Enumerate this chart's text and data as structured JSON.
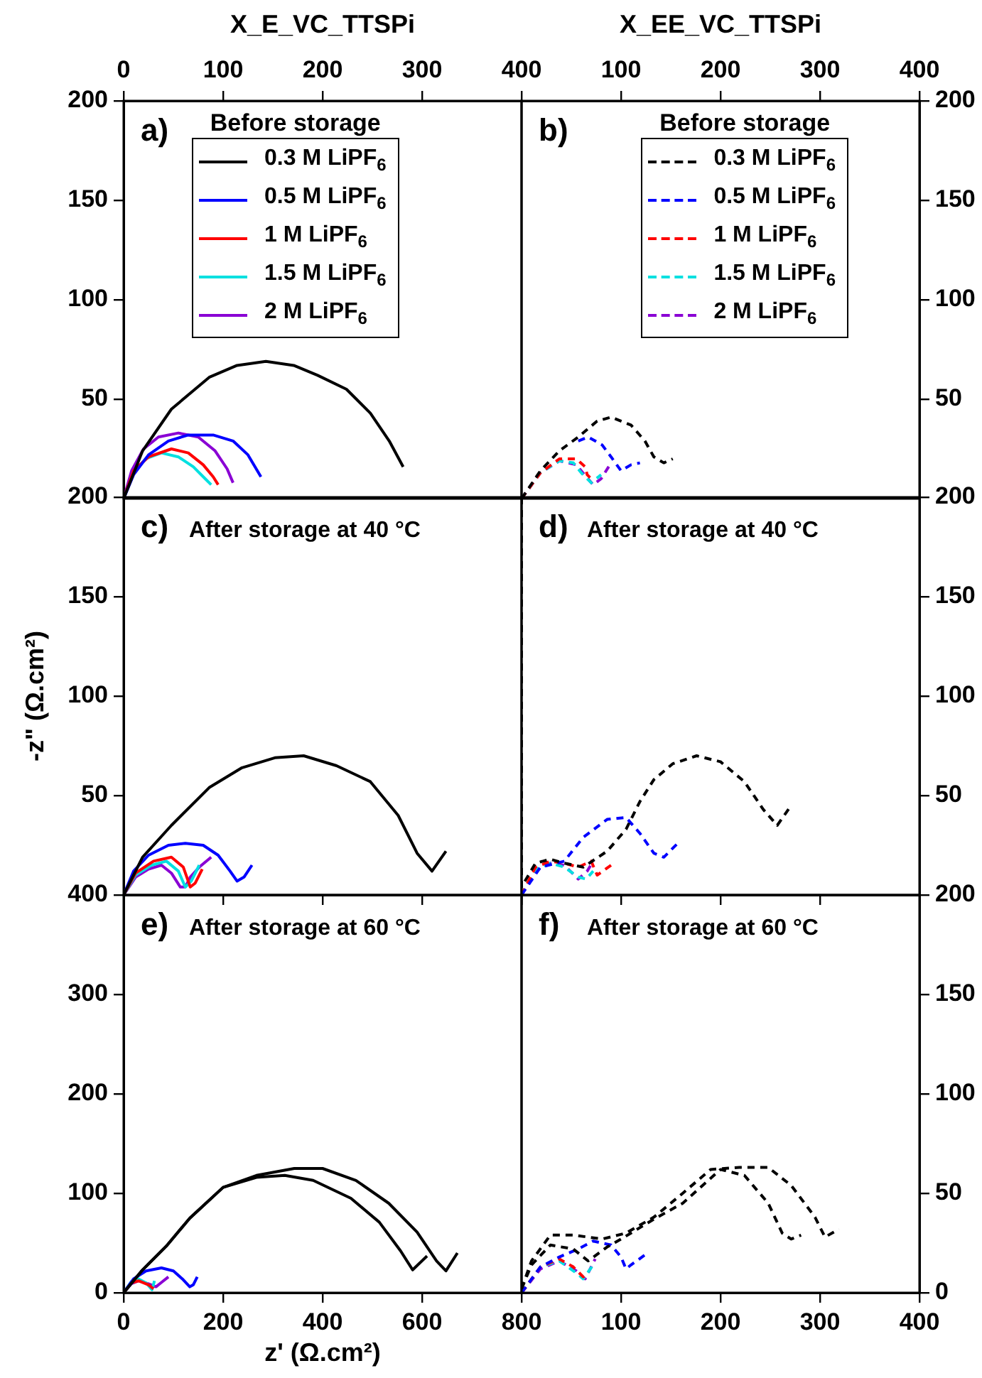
{
  "chart_data": [
    {
      "type": "line",
      "title": "a)",
      "legend_title": "Before storage",
      "legend": "top left",
      "xlabel": "X_E_VC_TTSPi",
      "line_style": "solid",
      "marker": "none",
      "xlim": [
        0,
        400
      ],
      "ylim": [
        0,
        200
      ],
      "xticks": [
        0,
        100,
        200,
        300,
        400
      ],
      "yticks": [
        50,
        100,
        150,
        200
      ],
      "series": [
        {
          "name": "0.3 M LiPF$_{6}$",
          "color": "#000000",
          "x": [
            0,
            19,
            48,
            86,
            114,
            143,
            171,
            195,
            224,
            248,
            267,
            281
          ],
          "values": [
            0,
            24,
            45,
            61,
            67,
            69,
            67,
            62,
            55,
            43,
            29,
            16
          ]
        },
        {
          "name": "0.5 M LiPF$_{6}$",
          "color": "#0000ff",
          "x": [
            0,
            10,
            25,
            45,
            65,
            90,
            110,
            125,
            138
          ],
          "values": [
            0,
            12,
            22,
            29,
            32,
            32,
            29,
            22,
            11
          ]
        },
        {
          "name": "1 M LiPF$_{6}$",
          "color": "#ff0000",
          "x": [
            0,
            10,
            25,
            48,
            65,
            80,
            90,
            95
          ],
          "values": [
            0,
            14,
            21,
            25,
            23,
            17,
            11,
            7
          ]
        },
        {
          "name": "1.5 M LiPF$_{6}$",
          "color": "#00e0e0",
          "x": [
            0,
            10,
            22,
            38,
            55,
            70,
            82,
            88
          ],
          "values": [
            0,
            13,
            20,
            23,
            21,
            16,
            10,
            7
          ]
        },
        {
          "name": "2 M LiPF$_{6}$",
          "color": "#8a00d4",
          "x": [
            0,
            8,
            20,
            35,
            55,
            75,
            92,
            104,
            110
          ],
          "values": [
            0,
            14,
            25,
            31,
            33,
            31,
            24,
            15,
            8
          ]
        }
      ]
    },
    {
      "type": "line",
      "title": "b)",
      "legend_title": "Before storage",
      "legend": "top right",
      "xlabel": "X_EE_VC_TTSPi",
      "line_style": "dashed",
      "marker": "none",
      "xlim": [
        0,
        400
      ],
      "ylim": [
        0,
        200
      ],
      "xticks": [
        100,
        200,
        300,
        400
      ],
      "yticks": [
        50,
        100,
        150,
        200
      ],
      "series": [
        {
          "name": "0.3 M LiPF$_{6}$",
          "color": "#000000",
          "x": [
            0,
            19,
            38,
            57,
            76,
            90,
            110,
            124,
            133,
            143,
            152
          ],
          "values": [
            0,
            14,
            24,
            31,
            39,
            41,
            37,
            29,
            21,
            18,
            20
          ]
        },
        {
          "name": "0.5 M LiPF$_{6}$",
          "color": "#0000ff",
          "x": [
            57,
            67,
            81,
            90,
            100,
            110,
            119
          ],
          "values": [
            29,
            31,
            27,
            21,
            14,
            17,
            18
          ]
        },
        {
          "name": "1 M LiPF$_{6}$",
          "color": "#ff0000",
          "x": [
            0,
            19,
            38,
            55,
            64,
            66,
            70
          ],
          "values": [
            0,
            13,
            20,
            20,
            16,
            12,
            10
          ]
        },
        {
          "name": "1.5 M LiPF$_{6}$",
          "color": "#00e0e0",
          "x": [
            0,
            19,
            38,
            52,
            60,
            70,
            80
          ],
          "values": [
            0,
            13,
            19,
            18,
            13,
            8,
            12
          ]
        },
        {
          "name": "2 M LiPF$_{6}$",
          "color": "#8a00d4",
          "x": [
            0,
            19,
            38,
            55,
            65,
            72,
            80,
            90
          ],
          "values": [
            0,
            13,
            19,
            17,
            11,
            7,
            10,
            18
          ]
        }
      ]
    },
    {
      "type": "line",
      "title": "c)",
      "subtitle": "After storage at 40 °C",
      "ylabel": "-z\" (Ω.cm²)",
      "tick_labels": "y",
      "line_style": "solid",
      "marker": "none",
      "xlim": [
        0,
        400
      ],
      "ylim": [
        0,
        200
      ],
      "xticks": [
        0,
        100,
        200,
        300,
        400
      ],
      "yticks": [
        50,
        100,
        150,
        200
      ],
      "series": [
        {
          "color": "#000000",
          "x": [
            0,
            19,
            48,
            86,
            119,
            152,
            181,
            214,
            248,
            276,
            295,
            310,
            324
          ],
          "values": [
            0,
            19,
            35,
            54,
            64,
            69,
            70,
            65,
            57,
            40,
            21,
            12,
            22
          ]
        },
        {
          "color": "#0000ff",
          "x": [
            0,
            10,
            25,
            45,
            62,
            80,
            95,
            107,
            114,
            121,
            129
          ],
          "values": [
            0,
            12,
            20,
            25,
            26,
            25,
            20,
            12,
            7,
            9,
            15
          ]
        },
        {
          "color": "#ff0000",
          "x": [
            0,
            12,
            30,
            48,
            60,
            67,
            72,
            79
          ],
          "values": [
            0,
            11,
            17,
            19,
            14,
            4,
            6,
            13
          ]
        },
        {
          "color": "#00e0e0",
          "x": [
            0,
            12,
            28,
            43,
            55,
            62,
            68,
            76
          ],
          "values": [
            0,
            10,
            15,
            17,
            12,
            4,
            7,
            15
          ]
        },
        {
          "color": "#8a00d4",
          "x": [
            0,
            12,
            25,
            38,
            48,
            57,
            62,
            67,
            76,
            88
          ],
          "values": [
            0,
            9,
            13,
            15,
            11,
            4,
            4,
            9,
            14,
            19
          ]
        }
      ]
    },
    {
      "type": "line",
      "title": "d)",
      "subtitle": "After storage at 40 °C",
      "tick_labels": "y",
      "line_style": "dashed",
      "marker": "none",
      "xlim": [
        0,
        400
      ],
      "ylim": [
        0,
        200
      ],
      "xticks": [
        0,
        100,
        200,
        300,
        400
      ],
      "yticks": [
        50,
        100,
        150,
        200
      ],
      "series": [
        {
          "color": "#000000",
          "x": [
            0,
            0,
            14,
            29,
            43,
            62,
            86,
            105,
            119,
            133,
            152,
            176,
            200,
            224,
            243,
            257,
            271
          ],
          "values": [
            200,
            4,
            16,
            18,
            16,
            14,
            22,
            33,
            47,
            58,
            66,
            70,
            67,
            57,
            43,
            35,
            45
          ]
        },
        {
          "color": "#0000ff",
          "x": [
            0,
            19,
            43,
            62,
            86,
            105,
            119,
            133,
            143,
            157
          ],
          "values": [
            0,
            14,
            17,
            29,
            38,
            39,
            31,
            21,
            19,
            26
          ]
        },
        {
          "color": "#ff0000",
          "x": [
            0,
            14,
            29,
            43,
            57,
            70,
            76,
            90
          ],
          "values": [
            0,
            14,
            17,
            16,
            14,
            17,
            10,
            15
          ]
        },
        {
          "color": "#00e0e0",
          "x": [
            0,
            14,
            29,
            43,
            57,
            65,
            72
          ],
          "values": [
            0,
            13,
            16,
            14,
            9,
            8,
            12
          ]
        },
        {
          "color": "#8a00d4",
          "x": [
            0,
            14,
            29,
            43,
            57,
            66,
            72
          ],
          "values": [
            0,
            12,
            16,
            15,
            8,
            12,
            17
          ]
        }
      ]
    },
    {
      "type": "line",
      "title": "e)",
      "subtitle": "After storage at 60 °C",
      "xlabel": "z' (Ω.cm²)",
      "line_style": "solid",
      "marker": "none",
      "xlim": [
        0,
        800
      ],
      "ylim": [
        0,
        400
      ],
      "xticks": [
        0,
        200,
        400,
        600,
        800
      ],
      "yticks": [
        0,
        100,
        200,
        300,
        400
      ],
      "series": [
        {
          "color": "#000000",
          "x": [
            0,
            38,
            86,
            133,
            200,
            267,
            343,
            400,
            467,
            533,
            590,
            629,
            648,
            671
          ],
          "values": [
            0,
            23,
            47,
            75,
            106,
            118,
            125,
            125,
            113,
            90,
            61,
            32,
            22,
            40
          ]
        },
        {
          "color": "#000000",
          "x": [
            0,
            38,
            86,
            133,
            200,
            267,
            324,
            381,
            457,
            514,
            557,
            581,
            610
          ],
          "values": [
            0,
            23,
            47,
            75,
            106,
            116,
            118,
            113,
            95,
            71,
            42,
            23,
            37
          ]
        },
        {
          "color": "#0000ff",
          "x": [
            0,
            20,
            45,
            76,
            100,
            118,
            133,
            140,
            148
          ],
          "values": [
            0,
            14,
            22,
            25,
            22,
            14,
            6,
            8,
            16
          ]
        },
        {
          "color": "#ff0000",
          "x": [
            0,
            15,
            30,
            50,
            60
          ],
          "values": [
            0,
            10,
            12,
            8,
            4
          ]
        },
        {
          "color": "#00e0e0",
          "x": [
            0,
            15,
            29,
            45,
            57,
            62
          ],
          "values": [
            0,
            11,
            14,
            10,
            3,
            12
          ]
        },
        {
          "color": "#8a00d4",
          "x": [
            0,
            15,
            30,
            50,
            65,
            75,
            90
          ],
          "values": [
            0,
            9,
            12,
            9,
            6,
            10,
            16
          ]
        }
      ]
    },
    {
      "type": "line",
      "title": "f)",
      "subtitle": "After storage at 60 °C",
      "line_style": "dashed",
      "marker": "none",
      "xlim": [
        0,
        400
      ],
      "ylim": [
        0,
        200
      ],
      "xticks": [
        100,
        200,
        300,
        400
      ],
      "yticks": [
        0,
        50,
        100,
        150,
        200
      ],
      "series": [
        {
          "color": "#000000",
          "x": [
            0,
            10,
            29,
            52,
            81,
            105,
            133,
            162,
            190,
            219,
            248,
            271,
            295,
            305,
            319
          ],
          "values": [
            2,
            16,
            29,
            29,
            27,
            30,
            38,
            50,
            62,
            63,
            63,
            54,
            38,
            28,
            32
          ]
        },
        {
          "color": "#000000",
          "x": [
            0,
            10,
            29,
            52,
            67,
            86,
            100,
            133,
            162,
            200,
            224,
            248,
            262,
            271,
            281
          ],
          "values": [
            2,
            14,
            24,
            22,
            16,
            23,
            27,
            37,
            45,
            62,
            59,
            45,
            30,
            27,
            29
          ]
        },
        {
          "color": "#0000ff",
          "x": [
            0,
            19,
            38,
            57,
            72,
            90,
            100,
            105,
            110,
            124
          ],
          "values": [
            0,
            13,
            18,
            22,
            26,
            24,
            18,
            12,
            14,
            19
          ]
        },
        {
          "color": "#ff0000",
          "x": [
            0,
            19,
            38,
            52,
            62,
            67
          ],
          "values": [
            0,
            13,
            17,
            13,
            8,
            10
          ]
        },
        {
          "color": "#00e0e0",
          "x": [
            0,
            19,
            38,
            55,
            62,
            72
          ],
          "values": [
            0,
            13,
            16,
            10,
            7,
            14
          ]
        },
        {
          "color": "#8a00d4",
          "x": [
            0,
            19,
            38,
            55,
            64,
            74
          ],
          "values": [
            0,
            12,
            16,
            11,
            7,
            17
          ]
        }
      ]
    }
  ]
}
